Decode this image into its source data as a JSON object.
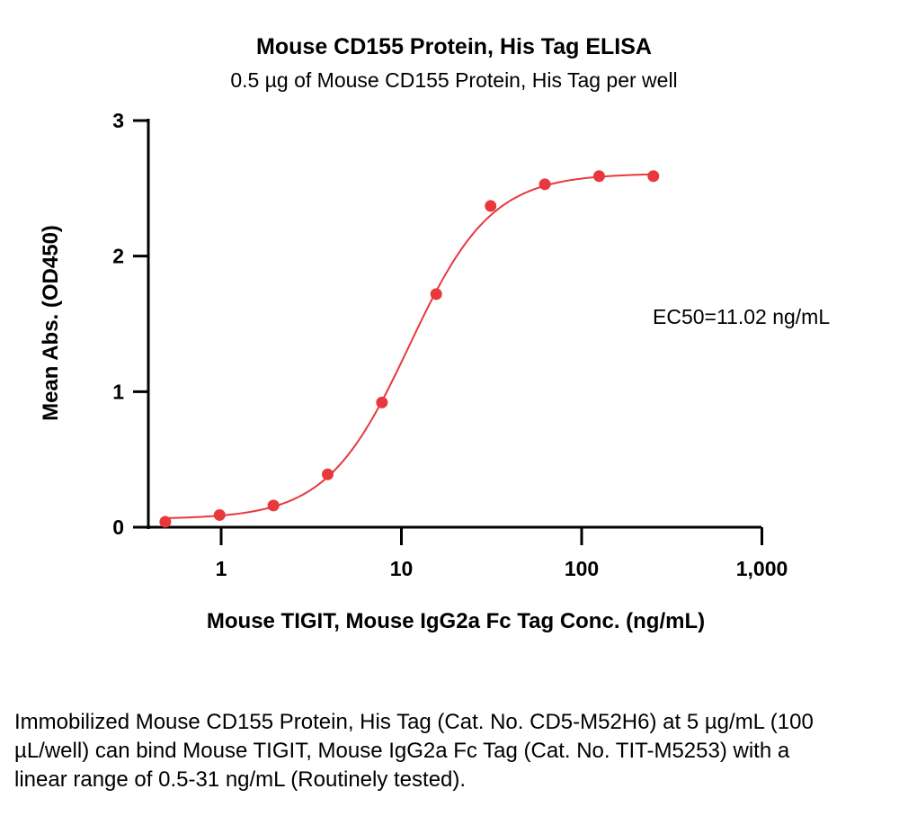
{
  "chart_data": {
    "type": "scatter",
    "title": "Mouse CD155 Protein, His Tag ELISA",
    "subtitle": "0.5 µg of Mouse CD155 Protein, His Tag per well",
    "xlabel": "Mouse TIGIT, Mouse IgG2a Fc Tag Conc. (ng/mL)",
    "ylabel": "Mean Abs. (OD450)",
    "x_scale": "log",
    "xlim": [
      0.4,
      1000
    ],
    "ylim": [
      0,
      3
    ],
    "x_ticks": [
      1,
      10,
      100,
      1000
    ],
    "x_tick_labels": [
      "1",
      "10",
      "100",
      "1,000"
    ],
    "y_ticks": [
      0,
      1,
      2,
      3
    ],
    "y_tick_labels": [
      "0",
      "1",
      "2",
      "3"
    ],
    "grid": false,
    "series": [
      {
        "x": [
          0.49,
          0.98,
          1.95,
          3.9,
          7.8,
          15.6,
          31.25,
          62.5,
          125,
          250
        ],
        "y": [
          0.04,
          0.09,
          0.16,
          0.39,
          0.92,
          1.72,
          2.37,
          2.53,
          2.59,
          2.59
        ],
        "color": "#e8383d"
      }
    ],
    "fit": {
      "model": "4PL",
      "bottom": 0.06,
      "top": 2.61,
      "ec50": 11.02,
      "hill": 1.9,
      "color": "#e8383d"
    },
    "annotation": "EC50=11.02 ng/mL"
  },
  "caption": "Immobilized Mouse CD155 Protein, His Tag (Cat. No. CD5-M52H6) at 5 µg/mL (100 µL/well) can bind Mouse TIGIT, Mouse IgG2a Fc Tag (Cat. No. TIT-M5253) with a linear range of 0.5-31 ng/mL (Routinely tested)."
}
